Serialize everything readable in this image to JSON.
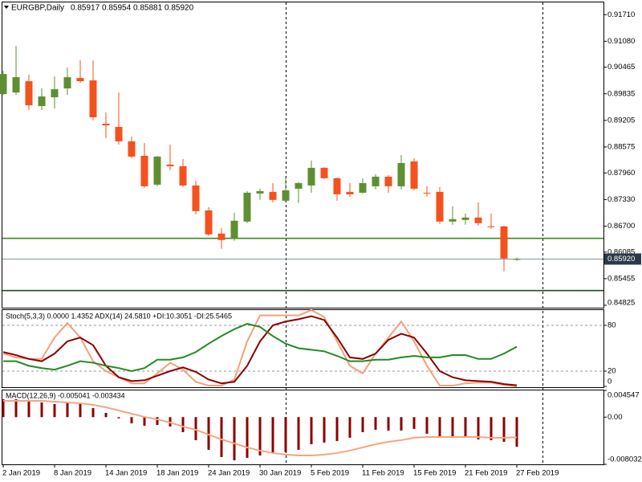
{
  "chart_data": [
    {
      "type": "candlestick",
      "title": "EURGBP,Daily",
      "header_values": [
        "0.85917",
        "0.85954",
        "0.85881",
        "0.85920"
      ],
      "categories": [
        "2 Jan 2019",
        null,
        null,
        null,
        "8 Jan 2019",
        null,
        null,
        null,
        "14 Jan 2019",
        null,
        null,
        null,
        "18 Jan 2019",
        null,
        null,
        null,
        "24 Jan 2019",
        null,
        null,
        null,
        "30 Jan 2019",
        null,
        null,
        null,
        "5 Feb 2019",
        null,
        null,
        null,
        "11 Feb 2019",
        null,
        null,
        null,
        "15 Feb 2019",
        null,
        null,
        null,
        "21 Feb 2019",
        null,
        null,
        null,
        "27 Feb 2019"
      ],
      "open": [
        0.89829,
        0.89867,
        0.90133,
        0.89544,
        0.89753,
        0.89962,
        0.90209,
        0.90152,
        0.89126,
        0.8905,
        0.88708,
        0.88366,
        0.87682,
        0.88157,
        0.88119,
        0.87663,
        0.87074,
        0.86523,
        0.86409,
        0.86808,
        0.87473,
        0.87511,
        0.87302,
        0.87587,
        0.87663,
        0.88081,
        0.87834,
        0.87511,
        0.87492,
        0.87644,
        0.87872,
        0.87644,
        0.88233,
        0.87492,
        0.87511,
        0.86808,
        0.86846,
        0.86903,
        0.86694,
        0.86694,
        0.85917
      ],
      "high": [
        0.9038,
        0.90969,
        0.90285,
        0.89962,
        0.90247,
        0.90456,
        0.90627,
        0.90627,
        0.89392,
        0.89867,
        0.88822,
        0.8867,
        0.88366,
        0.88632,
        0.8829,
        0.87777,
        0.8715,
        0.86656,
        0.87017,
        0.8753,
        0.87587,
        0.8772,
        0.87872,
        0.87739,
        0.88252,
        0.881,
        0.87853,
        0.8772,
        0.87834,
        0.87929,
        0.8791,
        0.88385,
        0.88309,
        0.87644,
        0.87625,
        0.87169,
        0.86998,
        0.87264,
        0.86998,
        0.86713,
        0.85954
      ],
      "low": [
        0.8981,
        0.8981,
        0.89449,
        0.89449,
        0.89487,
        0.8981,
        0.90095,
        0.89202,
        0.88784,
        0.88632,
        0.88309,
        0.87606,
        0.87644,
        0.88024,
        0.87625,
        0.86979,
        0.86466,
        0.86162,
        0.86352,
        0.8677,
        0.87321,
        0.87264,
        0.87264,
        0.87245,
        0.87492,
        0.87815,
        0.87302,
        0.87397,
        0.87473,
        0.87568,
        0.87492,
        0.87568,
        0.87549,
        0.87397,
        0.86751,
        0.86732,
        0.86732,
        0.86713,
        0.86637,
        0.8563,
        0.85881
      ],
      "close": [
        0.90304,
        0.90228,
        0.89563,
        0.89772,
        0.89943,
        0.90228,
        0.90133,
        0.89278,
        0.89088,
        0.88708,
        0.88347,
        0.87644,
        0.88347,
        0.88119,
        0.87663,
        0.87055,
        0.86504,
        0.86371,
        0.86827,
        0.87492,
        0.8753,
        0.87321,
        0.87549,
        0.8772,
        0.88081,
        0.87834,
        0.87454,
        0.87454,
        0.8772,
        0.87872,
        0.87644,
        0.88195,
        0.87587,
        0.87473,
        0.86808,
        0.86865,
        0.86903,
        0.8677,
        0.86675,
        0.85934,
        0.8592
      ],
      "up_color": "#5e8f32",
      "down_color": "#f4511e",
      "ylim": [
        0.84768,
        0.92
      ],
      "yticks": [
        {
          "value": 0.9171,
          "label": "0.91710"
        },
        {
          "value": 0.9108,
          "label": "0.91080"
        },
        {
          "value": 0.90465,
          "label": "0.90465"
        },
        {
          "value": 0.89835,
          "label": "0.89835"
        },
        {
          "value": 0.89205,
          "label": "0.89205"
        },
        {
          "value": 0.88575,
          "label": "0.88575"
        },
        {
          "value": 0.8796,
          "label": "0.87960"
        },
        {
          "value": 0.8733,
          "label": "0.87330"
        },
        {
          "value": 0.867,
          "label": "0.86700"
        },
        {
          "value": 0.86085,
          "label": "0.86085"
        },
        {
          "value": 0.85455,
          "label": "0.85455"
        },
        {
          "value": 0.84825,
          "label": "0.84825"
        }
      ],
      "hlines": [
        {
          "value": 0.8641,
          "color": "#3a8a24"
        },
        {
          "value": 0.85174,
          "color": "#1e4d2b"
        }
      ],
      "last_price": {
        "value": 0.8592,
        "label": "0.85920",
        "color": "#2b3a4a"
      }
    },
    {
      "type": "line",
      "title": "Stoch(5,3,3) 0.0000 1.4352  ADX(14) 24.5810 +DI:10.3051 -DI:25.5465",
      "series": [
        {
          "color": "#f4a07a",
          "values": [
            43,
            38,
            36,
            36,
            64,
            83,
            64,
            33,
            20,
            12,
            4,
            4,
            17,
            31,
            22,
            6,
            1,
            1,
            9,
            59,
            93,
            93,
            93,
            93,
            100,
            91,
            59,
            27,
            17,
            43,
            64,
            85,
            59,
            27,
            1,
            1,
            4,
            5,
            5,
            2,
            0
          ]
        },
        {
          "color": "#8b0000",
          "values": [
            45,
            41,
            36,
            33,
            43,
            59,
            64,
            54,
            27,
            12,
            7,
            8,
            14,
            20,
            25,
            19,
            9,
            4,
            6,
            27,
            59,
            80,
            85,
            88,
            92,
            87,
            64,
            38,
            36,
            43,
            61,
            69,
            64,
            43,
            20,
            12,
            8,
            7,
            6,
            3,
            1.4352
          ]
        },
        {
          "color": "#228b22",
          "values": [
            33,
            33,
            27,
            24,
            22,
            27,
            33,
            31,
            27,
            24,
            20,
            24,
            35,
            35,
            38,
            45,
            56,
            66,
            75,
            82,
            78,
            66,
            56,
            50,
            48,
            46,
            40,
            33,
            33,
            35,
            35,
            38,
            40,
            38,
            38,
            41,
            41,
            36,
            36,
            43,
            52
          ]
        }
      ],
      "ylim": [
        0,
        100
      ],
      "yticks": [
        80,
        20,
        0
      ]
    },
    {
      "type": "macd",
      "title": "MACD(12,26,9) -0.005041 -0.003434",
      "histogram": {
        "color": "#8b0000",
        "values": [
          0.00305,
          0.00305,
          0.00277,
          0.0025,
          0.00223,
          0.0025,
          0.00223,
          0.00154,
          0.00072,
          -0.0002,
          -0.00105,
          -0.00146,
          -0.00133,
          -0.0016,
          -0.00256,
          -0.00392,
          -0.00556,
          -0.00679,
          -0.00734,
          -0.00693,
          -0.00652,
          -0.00611,
          -0.00597,
          -0.00556,
          -0.00461,
          -0.00433,
          -0.00406,
          -0.00351,
          -0.00256,
          -0.00215,
          -0.00228,
          -0.00228,
          -0.00201,
          -0.00283,
          -0.00351,
          -0.00324,
          -0.00351,
          -0.00379,
          -0.00392,
          -0.0042,
          -0.005041
        ]
      },
      "signal": {
        "color": "#f4a582",
        "values": [
          0.00277,
          0.00277,
          0.00277,
          0.00277,
          0.00264,
          0.0025,
          0.00236,
          0.00209,
          0.00168,
          0.00113,
          0.00059,
          4e-05,
          -0.00037,
          -0.00092,
          -0.0016,
          -0.00215,
          -0.00297,
          -0.00379,
          -0.00447,
          -0.00515,
          -0.0057,
          -0.00611,
          -0.00638,
          -0.00652,
          -0.00652,
          -0.00638,
          -0.00611,
          -0.0057,
          -0.00515,
          -0.00461,
          -0.0042,
          -0.00392,
          -0.00351,
          -0.00338,
          -0.00338,
          -0.00338,
          -0.00338,
          -0.00338,
          -0.00351,
          -0.00351,
          -0.003434
        ]
      },
      "ylim": [
        -0.008032,
        0.004547
      ],
      "yticks": [
        {
          "value": 0.004547,
          "label": "0.004547"
        },
        {
          "value": 0,
          "label": "0.00"
        },
        {
          "value": -0.008032,
          "label": "-0.008032"
        }
      ]
    }
  ]
}
